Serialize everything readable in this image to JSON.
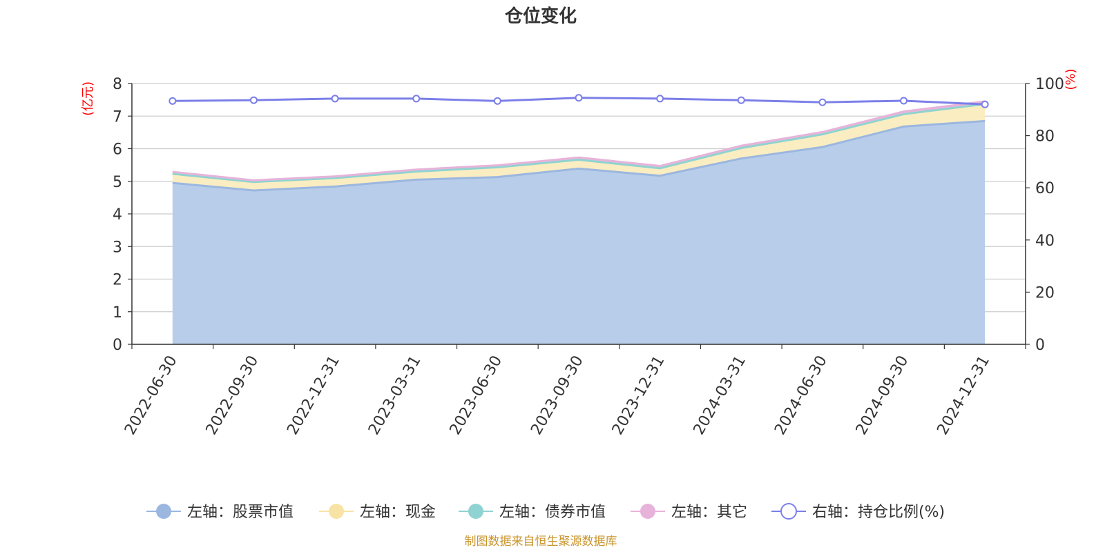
{
  "title": "仓位变化",
  "source": "制图数据来自恒生聚源数据库",
  "colors": {
    "stock": "#9bb7e0",
    "stock_fill": "#b8cde9",
    "cash": "#f8e3a4",
    "cash_fill": "#faedc1",
    "bond": "#8fd3d2",
    "other": "#e7b3da",
    "ratio": "#7b7fe8",
    "grid": "#cccccc",
    "axis": "#333333",
    "unit": "#ff0000"
  },
  "chart_data": {
    "type": "area",
    "title": "仓位变化",
    "categories": [
      "2022-06-30",
      "2022-09-30",
      "2022-12-31",
      "2023-03-31",
      "2023-06-30",
      "2023-09-30",
      "2023-12-31",
      "2024-03-31",
      "2024-06-30",
      "2024-09-30",
      "2024-12-31"
    ],
    "left_axis": {
      "unit": "(亿元)",
      "ylim": [
        0,
        8
      ],
      "ticks": [
        "0",
        "1",
        "2",
        "3",
        "4",
        "5",
        "6",
        "7",
        "8"
      ]
    },
    "right_axis": {
      "unit": "(%)",
      "ylim": [
        0,
        100
      ],
      "ticks": [
        "0",
        "20",
        "40",
        "60",
        "80",
        "100"
      ]
    },
    "grid": true,
    "legend_position": "bottom",
    "series": [
      {
        "name": "左轴：股票市值",
        "axis": "left",
        "stacked": true,
        "values": [
          4.95,
          4.72,
          4.84,
          5.05,
          5.13,
          5.39,
          5.17,
          5.7,
          6.05,
          6.68,
          6.85
        ]
      },
      {
        "name": "左轴：现金",
        "axis": "left",
        "stacked": true,
        "values": [
          0.28,
          0.26,
          0.26,
          0.25,
          0.3,
          0.27,
          0.23,
          0.32,
          0.39,
          0.38,
          0.52
        ]
      },
      {
        "name": "左轴：债券市值",
        "axis": "left",
        "stacked": true,
        "values": [
          0,
          0,
          0,
          0,
          0,
          0,
          0,
          0,
          0,
          0,
          0
        ]
      },
      {
        "name": "左轴：其它",
        "axis": "left",
        "stacked": true,
        "values": [
          0.06,
          0.05,
          0.05,
          0.06,
          0.06,
          0.07,
          0.07,
          0.07,
          0.07,
          0.08,
          0.08
        ]
      },
      {
        "name": "右轴：持仓比例(%)",
        "axis": "right",
        "stacked": false,
        "values": [
          93.3,
          93.6,
          94.2,
          94.2,
          93.3,
          94.5,
          94.2,
          93.6,
          92.8,
          93.4,
          92.0
        ]
      }
    ]
  }
}
